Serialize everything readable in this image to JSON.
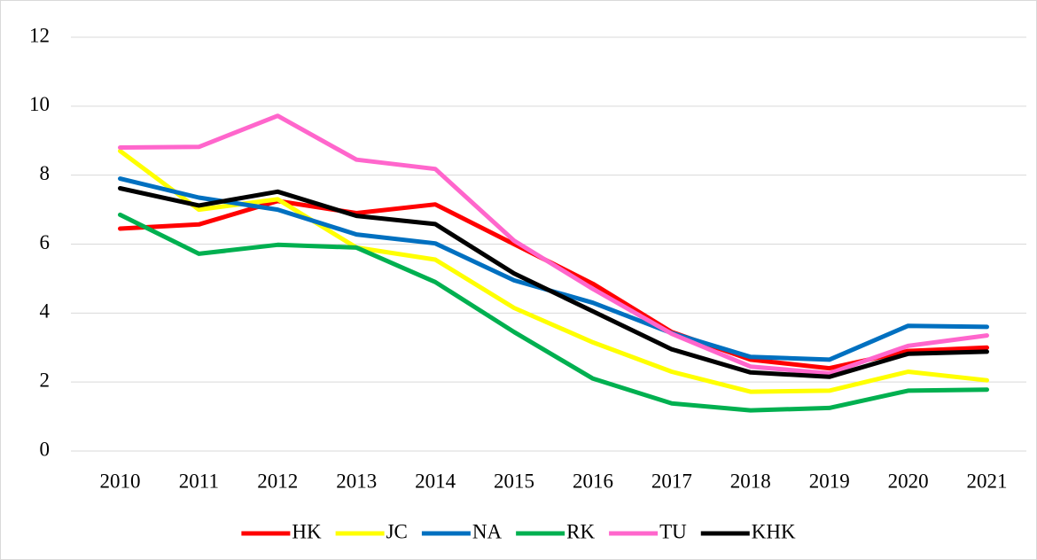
{
  "chart_data": {
    "type": "line",
    "categories": [
      "2010",
      "2011",
      "2012",
      "2013",
      "2014",
      "2015",
      "2016",
      "2017",
      "2018",
      "2019",
      "2020",
      "2021"
    ],
    "series": [
      {
        "name": "HK",
        "color": "#ff0000",
        "values": [
          6.45,
          6.57,
          7.25,
          6.9,
          7.15,
          6.0,
          4.85,
          3.45,
          2.65,
          2.4,
          2.9,
          3.0
        ]
      },
      {
        "name": "JC",
        "color": "#ffff00",
        "values": [
          8.7,
          7.0,
          7.3,
          5.9,
          5.55,
          4.15,
          3.15,
          2.3,
          1.72,
          1.75,
          2.3,
          2.05
        ]
      },
      {
        "name": "NA",
        "color": "#0070c0",
        "values": [
          7.9,
          7.35,
          7.0,
          6.28,
          6.02,
          4.95,
          4.3,
          3.42,
          2.73,
          2.65,
          3.63,
          3.6
        ]
      },
      {
        "name": "RK",
        "color": "#00b050",
        "values": [
          6.85,
          5.72,
          5.98,
          5.9,
          4.9,
          3.45,
          2.1,
          1.38,
          1.18,
          1.25,
          1.75,
          1.78
        ]
      },
      {
        "name": "TU",
        "color": "#ff66cc",
        "values": [
          8.8,
          8.82,
          9.72,
          8.45,
          8.18,
          6.1,
          4.7,
          3.4,
          2.45,
          2.25,
          3.05,
          3.35
        ]
      },
      {
        "name": "KHK",
        "color": "#000000",
        "values": [
          7.62,
          7.12,
          7.52,
          6.82,
          6.58,
          5.15,
          4.05,
          2.95,
          2.28,
          2.15,
          2.82,
          2.88
        ]
      }
    ],
    "ylim": [
      0,
      12
    ],
    "yticks": [
      0,
      2,
      4,
      6,
      8,
      10,
      12
    ],
    "grid": true,
    "legend": "bottom"
  }
}
